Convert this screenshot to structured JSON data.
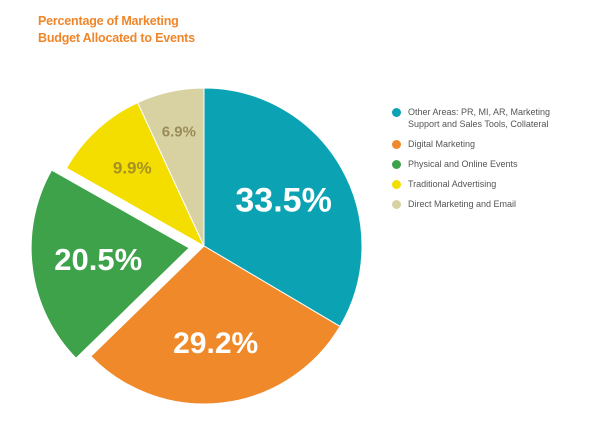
{
  "chart_data": {
    "type": "pie",
    "title": [
      "Percentage of Marketing",
      "Budget Allocated to Events"
    ],
    "slices": [
      {
        "name": "Other Areas: PR, MI, AR, Marketing Support and Sales Tools, Collateral",
        "label": "33.5%",
        "value": 33.5,
        "color": "#0ba3b3",
        "label_color": "#ffffff",
        "exploded": false
      },
      {
        "name": "Digital Marketing",
        "label": "29.2%",
        "value": 29.2,
        "color": "#f0892a",
        "label_color": "#ffffff",
        "exploded": false
      },
      {
        "name": "Physical and Online Events",
        "label": "20.5%",
        "value": 20.5,
        "color": "#3ea24a",
        "label_color": "#ffffff",
        "exploded": true
      },
      {
        "name": "Traditional Advertising",
        "label": "9.9%",
        "value": 9.9,
        "color": "#f4de00",
        "label_color": "#a59024",
        "exploded": false
      },
      {
        "name": "Direct Marketing and Email",
        "label": "6.9%",
        "value": 6.9,
        "color": "#d8d2a3",
        "label_color": "#9a8c58",
        "exploded": false
      }
    ],
    "legend": [
      {
        "lines": [
          "Other Areas: PR, MI, AR, Marketing",
          "Support and Sales Tools, Collateral"
        ],
        "color": "#0ba3b3"
      },
      {
        "lines": [
          "Digital Marketing"
        ],
        "color": "#f0892a"
      },
      {
        "lines": [
          "Physical and Online Events"
        ],
        "color": "#3ea24a"
      },
      {
        "lines": [
          "Traditional Advertising"
        ],
        "color": "#f4de00"
      },
      {
        "lines": [
          "Direct Marketing and Email"
        ],
        "color": "#d8d2a3"
      }
    ],
    "legend_position": "right"
  }
}
